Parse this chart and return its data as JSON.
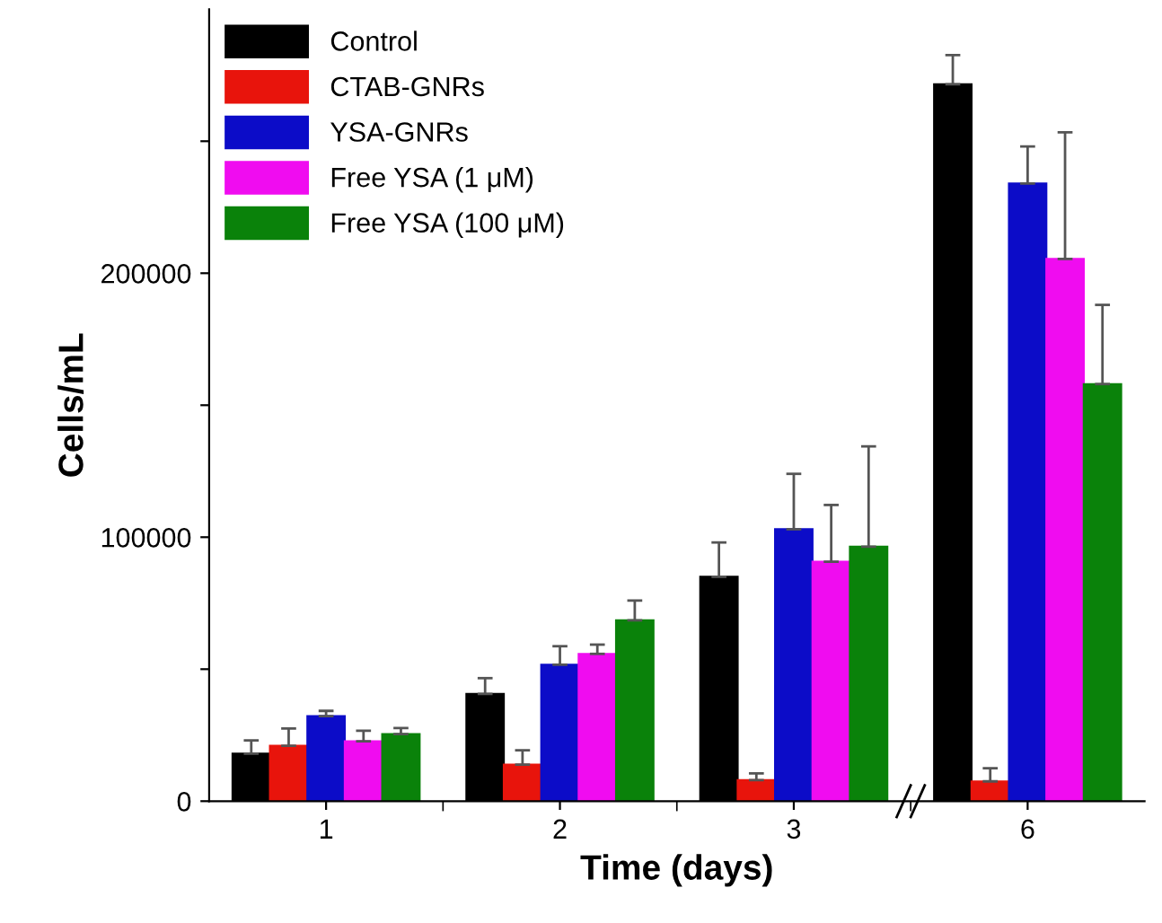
{
  "chart_data": {
    "type": "bar",
    "xlabel": "Time (days)",
    "ylabel": "Cells/mL",
    "categories": [
      "1",
      "2",
      "3",
      "6"
    ],
    "series": [
      {
        "name": "Control",
        "color": "#000000",
        "values": [
          18000,
          40600,
          85000,
          271600
        ],
        "errors": [
          5000,
          6000,
          13000,
          11000
        ]
      },
      {
        "name": "CTAB-GNRs",
        "color": "#e8140c",
        "values": [
          21000,
          13800,
          8000,
          7500
        ],
        "errors": [
          6500,
          5500,
          2500,
          5000
        ]
      },
      {
        "name": "YSA-GNRs",
        "color": "#0c0cc8",
        "values": [
          32200,
          51700,
          103000,
          234000
        ],
        "errors": [
          2000,
          7000,
          21000,
          14000
        ]
      },
      {
        "name": "Free YSA (1 μM)",
        "color": "#f00cf0",
        "values": [
          22700,
          55800,
          90700,
          205400
        ],
        "errors": [
          4000,
          3500,
          21500,
          48000
        ]
      },
      {
        "name": "Free YSA (100 μM)",
        "color": "#0a820a",
        "values": [
          25400,
          68500,
          96400,
          158000
        ],
        "errors": [
          2300,
          7500,
          38000,
          30000
        ]
      }
    ],
    "ylim": [
      0,
      300000
    ],
    "yticks": [
      0,
      {
        "value": 50000,
        "label": null
      },
      100000,
      {
        "value": 150000,
        "label": null
      },
      200000,
      {
        "value": 250000,
        "label": null
      }
    ],
    "legend": "top left",
    "grid": false
  }
}
